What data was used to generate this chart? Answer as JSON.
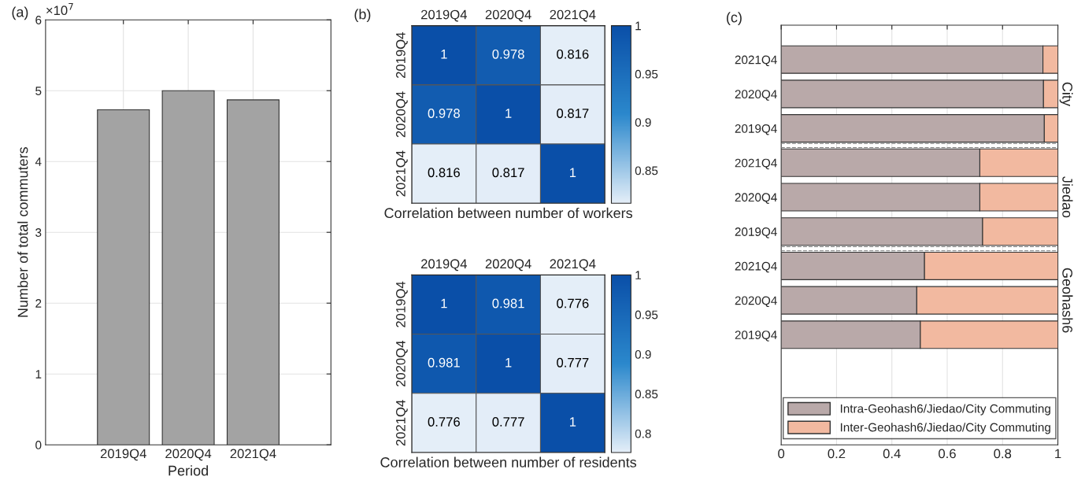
{
  "chart_data": [
    {
      "type": "bar",
      "categories": [
        "2019Q4",
        "2020Q4",
        "2021Q4"
      ],
      "values": [
        4.73,
        5.0,
        4.87
      ],
      "color": "#a3a3a3",
      "xlabel": "Period",
      "ylabel": "Number of total commuters",
      "ylim": [
        0,
        6
      ],
      "yticks": [
        0,
        1,
        2,
        3,
        4,
        5,
        6
      ],
      "grid": true,
      "annotations": [
        "(a)",
        "×10$^{7}$"
      ]
    },
    {
      "type": "heatmap",
      "categories": [
        "2019Q4",
        "2020Q4",
        "2021Q4"
      ],
      "y_categories": [
        "2019Q4",
        "2020Q4",
        "2021Q4"
      ],
      "cells": [
        [
          1,
          0.978,
          0.816
        ],
        [
          0.978,
          1,
          0.817
        ],
        [
          0.816,
          0.817,
          1
        ]
      ],
      "data_labels": true,
      "clim": [
        0.816,
        1
      ],
      "cticks": [
        0.85,
        0.9,
        0.95,
        1
      ],
      "xlabel": "Correlation between number of workers",
      "annotations": [
        "(b)"
      ]
    },
    {
      "type": "heatmap",
      "categories": [
        "2019Q4",
        "2020Q4",
        "2021Q4"
      ],
      "y_categories": [
        "2019Q4",
        "2020Q4",
        "2021Q4"
      ],
      "cells": [
        [
          1,
          0.981,
          0.776
        ],
        [
          0.981,
          1,
          0.777
        ],
        [
          0.776,
          0.777,
          1
        ]
      ],
      "data_labels": true,
      "clim": [
        0.776,
        1
      ],
      "cticks": [
        0.8,
        0.85,
        0.9,
        0.95,
        1
      ],
      "xlabel": "Correlation between number of residents"
    },
    {
      "type": "bar",
      "orientation": "horizontal",
      "stacked": true,
      "categories": [
        "2021Q4",
        "2020Q4",
        "2019Q4",
        "2021Q4",
        "2020Q4",
        "2019Q4",
        "2021Q4",
        "2020Q4",
        "2019Q4"
      ],
      "series": [
        {
          "name": "Intra-Geohash6/Jiedao/City Commuting",
          "color": "#b9a9a9",
          "values": [
            0.946,
            0.948,
            0.951,
            0.718,
            0.718,
            0.728,
            0.518,
            0.49,
            0.503
          ]
        },
        {
          "name": "Inter-Geohash6/Jiedao/City Commuting",
          "color": "#f2b9a0",
          "values": [
            0.054,
            0.052,
            0.049,
            0.282,
            0.282,
            0.272,
            0.482,
            0.51,
            0.497
          ]
        }
      ],
      "xlim": [
        0,
        1
      ],
      "xticks": [
        0,
        0.2,
        0.4,
        0.6,
        0.8,
        1
      ],
      "grid": "x",
      "legend": "bottom",
      "annotations": [
        "(c)",
        "City",
        "Jiedao",
        "Geohash6"
      ]
    }
  ]
}
